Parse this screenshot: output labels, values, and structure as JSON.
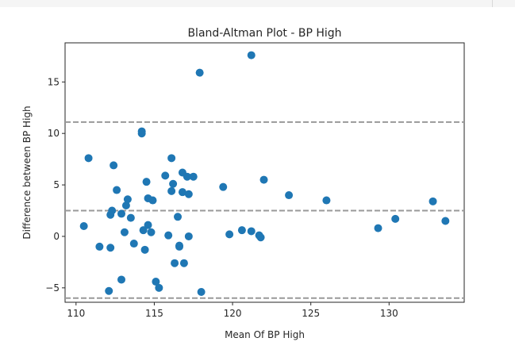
{
  "colors": {
    "point": "#1f77b4",
    "ref_line": "#999999",
    "axes": "#262626"
  },
  "chart_data": {
    "type": "scatter",
    "title": "Bland-Altman Plot - BP High",
    "xlabel": "Mean Of BP High",
    "ylabel": "Difference between BP High",
    "xlim": [
      109.3,
      134.8
    ],
    "ylim": [
      -6.4,
      18.8
    ],
    "xticks": [
      110,
      115,
      120,
      125,
      130
    ],
    "yticks": [
      -5,
      0,
      5,
      10,
      15
    ],
    "xtick_labels": [
      "110",
      "115",
      "120",
      "125",
      "130"
    ],
    "ytick_labels": [
      "−5",
      "0",
      "5",
      "10",
      "15"
    ],
    "grid": false,
    "reference_lines": [
      {
        "y": 11.1,
        "style": "dashed"
      },
      {
        "y": 2.5,
        "style": "dashed"
      },
      {
        "y": -6.0,
        "style": "dashed"
      }
    ],
    "points": [
      {
        "x": 110.5,
        "y": 1.0
      },
      {
        "x": 110.8,
        "y": 7.6
      },
      {
        "x": 111.5,
        "y": -1.0
      },
      {
        "x": 112.1,
        "y": -5.3
      },
      {
        "x": 112.2,
        "y": -1.1
      },
      {
        "x": 112.2,
        "y": 2.1
      },
      {
        "x": 112.3,
        "y": 2.5
      },
      {
        "x": 112.4,
        "y": 6.9
      },
      {
        "x": 112.6,
        "y": 4.5
      },
      {
        "x": 112.9,
        "y": 2.2
      },
      {
        "x": 112.9,
        "y": -4.2
      },
      {
        "x": 113.1,
        "y": 0.4
      },
      {
        "x": 113.2,
        "y": 3.0
      },
      {
        "x": 113.3,
        "y": 3.6
      },
      {
        "x": 113.5,
        "y": 1.8
      },
      {
        "x": 113.7,
        "y": -0.7
      },
      {
        "x": 114.2,
        "y": 10.2
      },
      {
        "x": 114.2,
        "y": 10.0
      },
      {
        "x": 114.3,
        "y": 0.6
      },
      {
        "x": 114.4,
        "y": -1.3
      },
      {
        "x": 114.5,
        "y": 5.3
      },
      {
        "x": 114.6,
        "y": 1.1
      },
      {
        "x": 114.6,
        "y": 3.7
      },
      {
        "x": 114.8,
        "y": 0.4
      },
      {
        "x": 114.9,
        "y": 3.5
      },
      {
        "x": 115.1,
        "y": -4.4
      },
      {
        "x": 115.3,
        "y": -5.0
      },
      {
        "x": 115.7,
        "y": 5.9
      },
      {
        "x": 115.9,
        "y": 0.1
      },
      {
        "x": 116.1,
        "y": 4.4
      },
      {
        "x": 116.1,
        "y": 7.6
      },
      {
        "x": 116.2,
        "y": 5.1
      },
      {
        "x": 116.3,
        "y": -2.6
      },
      {
        "x": 116.5,
        "y": 1.9
      },
      {
        "x": 116.6,
        "y": -0.9
      },
      {
        "x": 116.6,
        "y": -1.0
      },
      {
        "x": 116.8,
        "y": 6.2
      },
      {
        "x": 116.8,
        "y": 4.3
      },
      {
        "x": 116.9,
        "y": -2.6
      },
      {
        "x": 117.1,
        "y": 5.8
      },
      {
        "x": 117.2,
        "y": 4.1
      },
      {
        "x": 117.2,
        "y": 0.0
      },
      {
        "x": 117.5,
        "y": 5.8
      },
      {
        "x": 117.9,
        "y": 15.9
      },
      {
        "x": 118.0,
        "y": -5.4
      },
      {
        "x": 119.4,
        "y": 4.8
      },
      {
        "x": 119.8,
        "y": 0.2
      },
      {
        "x": 120.6,
        "y": 0.6
      },
      {
        "x": 121.2,
        "y": 17.6
      },
      {
        "x": 121.2,
        "y": 0.5
      },
      {
        "x": 121.7,
        "y": 0.1
      },
      {
        "x": 121.8,
        "y": -0.1
      },
      {
        "x": 122.0,
        "y": 5.5
      },
      {
        "x": 123.6,
        "y": 4.0
      },
      {
        "x": 126.0,
        "y": 3.5
      },
      {
        "x": 129.3,
        "y": 0.8
      },
      {
        "x": 130.4,
        "y": 1.7
      },
      {
        "x": 132.8,
        "y": 3.4
      },
      {
        "x": 133.6,
        "y": 1.5
      }
    ]
  }
}
